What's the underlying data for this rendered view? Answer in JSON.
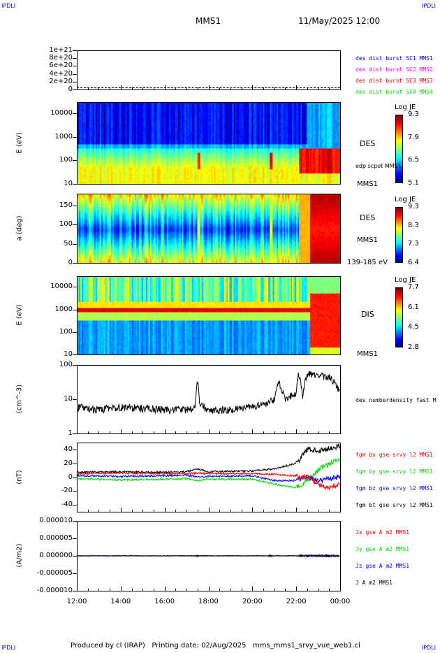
{
  "corner_label": "IPDLI",
  "header": {
    "spacecraft": "MMS1",
    "datetime": "11/May/2025 12:00"
  },
  "footer": "Produced by cl (IRAP)   Printing date: 02/Aug/2025   mms_mms1_srvy_vue_web1.cl",
  "time_ticks": [
    "12:00",
    "14:00",
    "16:00",
    "18:00",
    "20:00",
    "22:00",
    "00:00"
  ],
  "colors": {
    "red": "#ff0000",
    "green": "#00dd00",
    "blue": "#0000ff",
    "magenta": "#ff00ff",
    "black": "#000000"
  },
  "chart_data": [
    {
      "type": "line",
      "name": "burst",
      "ylim": [
        0,
        1e+21
      ],
      "yticks": [
        "1e+21",
        "8e+20",
        "6e+20",
        "4e+20",
        "2e+20",
        "0"
      ],
      "legend": [
        {
          "label": "des dist burst SC1 MMS1",
          "color": "#0000ff"
        },
        {
          "label": "des dist burst SC2 MMS2",
          "color": "#ff00ff"
        },
        {
          "label": "des dist burst SC3 MMS3",
          "color": "#ff0000"
        },
        {
          "label": "des dist burst SC4 MMS4",
          "color": "#00dd00"
        }
      ]
    },
    {
      "type": "heatmap",
      "name": "des-energy",
      "ylabel": "E (eV)",
      "yscale": "log",
      "ylim": [
        10,
        30000
      ],
      "yticks": [
        "10000",
        "1000",
        "100",
        "10"
      ],
      "colorbar_title": "Log JE",
      "colorbar_ticks": [
        "9.3",
        "7.9",
        "6.5",
        "5.1"
      ],
      "labels": [
        "DES",
        "edp scpot MMS1",
        "MMS1"
      ]
    },
    {
      "type": "heatmap",
      "name": "des-pitch",
      "ylabel": "a (deg)",
      "ylim": [
        0,
        180
      ],
      "yticks": [
        "150",
        "100",
        "50",
        "0"
      ],
      "colorbar_title": "Log JE",
      "colorbar_ticks": [
        "9.3",
        "8.3",
        "7.3",
        "6.4"
      ],
      "labels": [
        "DES",
        "MMS1",
        "139-185 eV"
      ]
    },
    {
      "type": "heatmap",
      "name": "dis-energy",
      "ylabel": "E (eV)",
      "yscale": "log",
      "ylim": [
        10,
        30000
      ],
      "yticks": [
        "10000",
        "1000",
        "100",
        "10"
      ],
      "colorbar_title": "Log JE",
      "colorbar_ticks": [
        "7.7",
        "6.1",
        "4.5",
        "2.8"
      ],
      "labels": [
        "DIS",
        "MMS1"
      ]
    },
    {
      "type": "line",
      "name": "density",
      "ylabel": "(cm^-3)",
      "yscale": "log",
      "ylim": [
        1,
        100
      ],
      "yticks": [
        "100",
        "10",
        "1"
      ],
      "legend": [
        {
          "label": "des numberdensity fast M",
          "color": "#000000"
        }
      ],
      "x_hours": [
        12,
        13,
        14,
        15,
        16,
        17,
        17.4,
        17.5,
        17.6,
        18,
        19,
        20,
        20.5,
        21,
        21.2,
        21.5,
        22,
        22.1,
        22.3,
        22.5,
        23,
        23.5,
        24
      ],
      "values": [
        6,
        5,
        6,
        5.5,
        5,
        5,
        5.5,
        35,
        7,
        5,
        5,
        6,
        7,
        10,
        30,
        10,
        15,
        50,
        12,
        55,
        50,
        45,
        15
      ]
    },
    {
      "type": "line",
      "name": "magnetic-field",
      "ylabel": "(nT)",
      "ylim": [
        -50,
        50
      ],
      "yticks": [
        "40",
        "20",
        "0",
        "-20",
        "-40"
      ],
      "x_hours": [
        12,
        14,
        16,
        17,
        17.5,
        18,
        20,
        21,
        22,
        22.5,
        23,
        23.5,
        24
      ],
      "series": [
        {
          "label": "fgm bx gse srvy l2 MMS1",
          "color": "#ff0000",
          "values": [
            5,
            6,
            5,
            5,
            6,
            5,
            5,
            4,
            2,
            0,
            -10,
            -15,
            -10
          ]
        },
        {
          "label": "fgm by gse srvy l2 MMS1",
          "color": "#00dd00",
          "values": [
            -2,
            -4,
            -3,
            -2,
            -5,
            -3,
            -3,
            -10,
            -15,
            -5,
            10,
            20,
            25
          ]
        },
        {
          "label": "fgm bz gse srvy l2 MMS1",
          "color": "#0000ff",
          "values": [
            2,
            1,
            2,
            3,
            0,
            1,
            2,
            -5,
            -5,
            0,
            -5,
            -2,
            0
          ]
        },
        {
          "label": "fgm bt gse srvy l2 MMS1",
          "color": "#000000",
          "values": [
            7,
            8,
            7,
            8,
            12,
            8,
            9,
            12,
            20,
            40,
            38,
            42,
            45
          ]
        }
      ]
    },
    {
      "type": "line",
      "name": "current-density",
      "ylabel": "(A/m2)",
      "ylim": [
        -1e-05,
        1e-05
      ],
      "yticks": [
        "0.000010",
        "0.000005",
        "0.000000",
        "-0.000005",
        "-0.000010"
      ],
      "legend": [
        {
          "label": "Jx gse A m2 MMS1",
          "color": "#ff0000"
        },
        {
          "label": "Jy gse A m2 MMS1",
          "color": "#00dd00"
        },
        {
          "label": "Jz gse A m2 MMS1",
          "color": "#0000ff"
        },
        {
          "label": "J A m2 MMS1",
          "color": "#000000"
        }
      ]
    }
  ]
}
